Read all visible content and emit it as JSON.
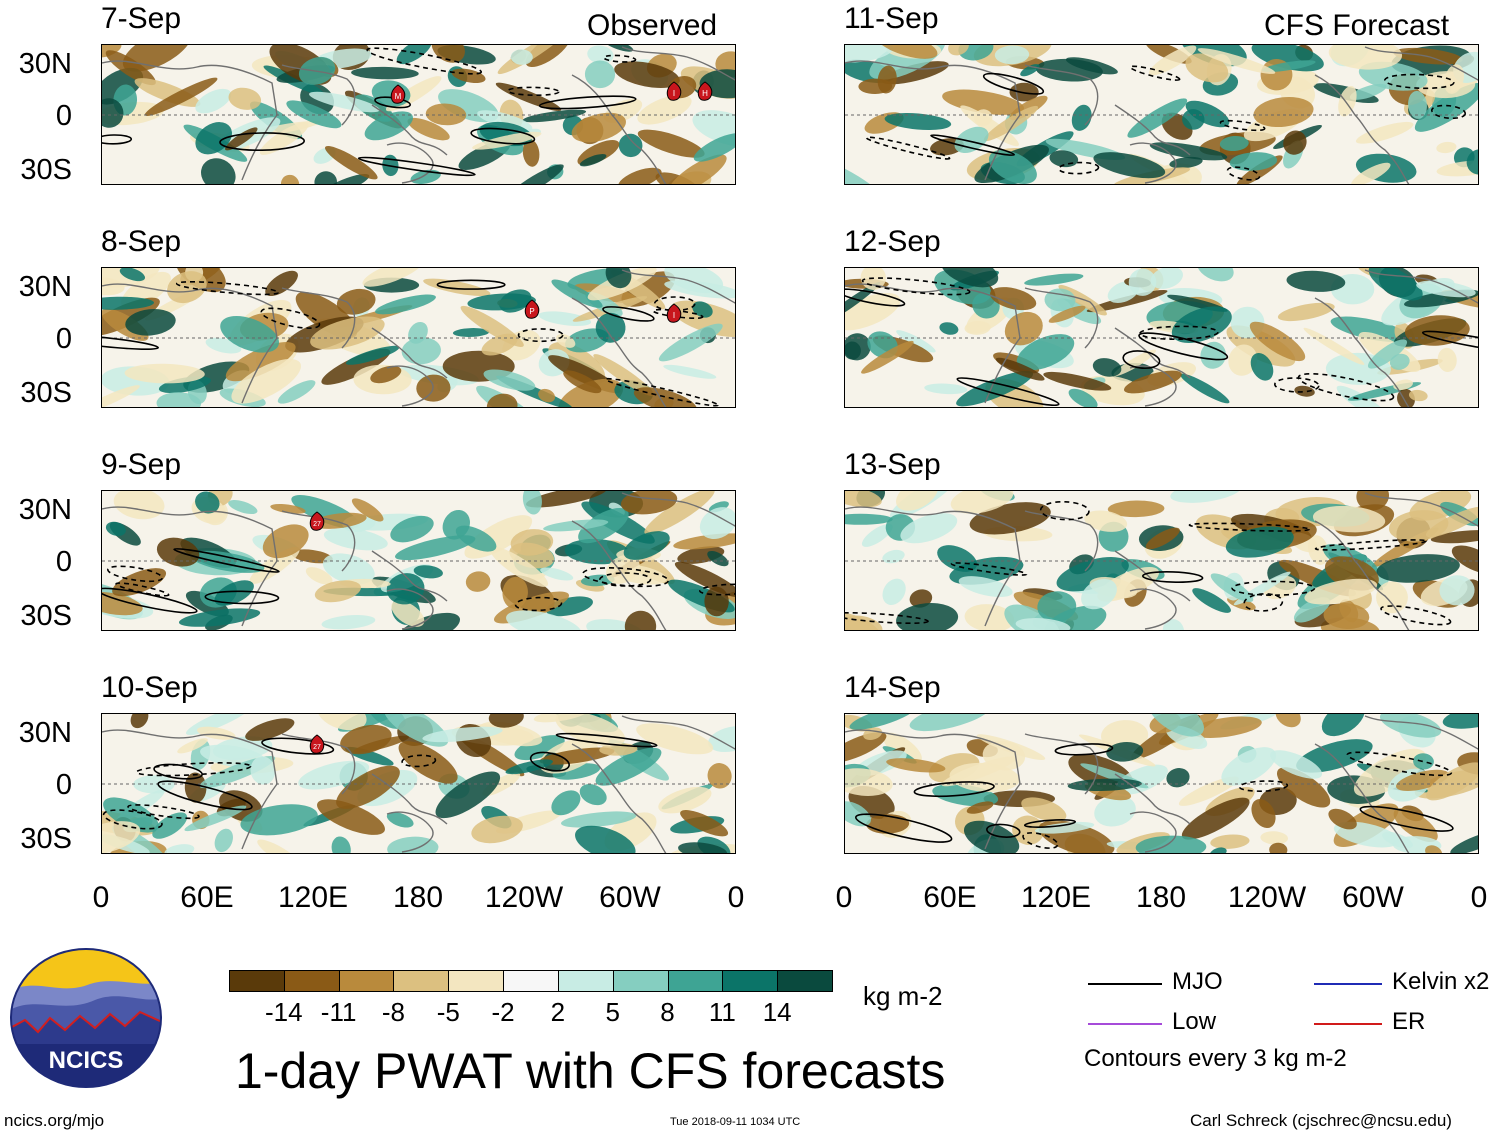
{
  "left_header": "Observed",
  "right_header": "CFS Forecast",
  "panels_left": [
    {
      "date": "7-Sep",
      "storms": [
        "M",
        "I",
        "H"
      ]
    },
    {
      "date": "8-Sep",
      "storms": [
        "P",
        "I"
      ]
    },
    {
      "date": "9-Sep",
      "storms": [
        "27"
      ]
    },
    {
      "date": "10-Sep",
      "storms": [
        "27"
      ]
    }
  ],
  "panels_right": [
    {
      "date": "11-Sep"
    },
    {
      "date": "12-Sep"
    },
    {
      "date": "13-Sep"
    },
    {
      "date": "14-Sep"
    }
  ],
  "lat_labels": [
    "30N",
    "0",
    "30S"
  ],
  "lon_labels": [
    "0",
    "60E",
    "120E",
    "180",
    "120W",
    "60W",
    "0"
  ],
  "colorbar": {
    "colors": [
      "#5a3a0a",
      "#8a5a16",
      "#b98a3c",
      "#dcc080",
      "#f3e6c0",
      "#f7f7f7",
      "#c8ece4",
      "#85cec0",
      "#3ea494",
      "#0b7468",
      "#0a4a3e"
    ],
    "ticks": [
      "-14",
      "-11",
      "-8",
      "-5",
      "-2",
      "2",
      "5",
      "8",
      "11",
      "14"
    ],
    "units": "kg m-2"
  },
  "legend": {
    "items": [
      {
        "label": "MJO",
        "color": "#000000"
      },
      {
        "label": "Kelvin x2",
        "color": "#1f2bb5"
      },
      {
        "label": "Low",
        "color": "#a64bd9"
      },
      {
        "label": "ER",
        "color": "#d11a1a"
      }
    ],
    "contours_note": "Contours every 3 kg m-2"
  },
  "logo_text": "NCICS",
  "main_title": "1-day PWAT with CFS forecasts",
  "footer": {
    "url": "ncics.org/mjo",
    "timestamp": "Tue 2018-09-11 1034 UTC",
    "credit": "Carl Schreck (cjschrec@ncsu.edu)"
  }
}
